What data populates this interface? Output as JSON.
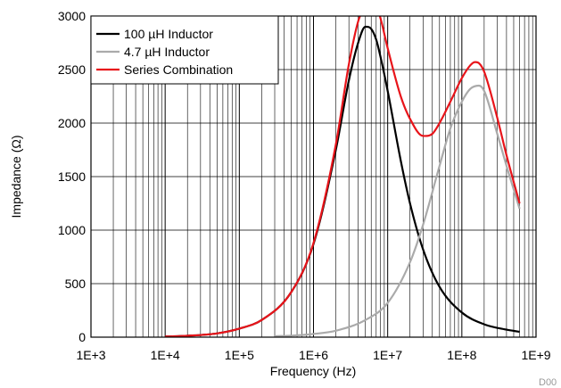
{
  "chart_data": {
    "type": "line",
    "title": "",
    "xlabel": "Frequency (Hz)",
    "ylabel": "Impedance (Ω)",
    "x_scale": "log",
    "xlim": [
      1000,
      1000000000
    ],
    "ylim": [
      0,
      3000
    ],
    "x_tick_labels": [
      "1E+3",
      "1E+4",
      "1E+5",
      "1E+6",
      "1E+7",
      "1E+8",
      "1E+9"
    ],
    "y_tick_labels": [
      "0",
      "500",
      "1000",
      "1500",
      "2000",
      "2500",
      "3000"
    ],
    "grid": true,
    "legend_position": "top-left",
    "series": [
      {
        "name": "100 µH Inductor",
        "color": "#000000",
        "x": [
          10000,
          20000,
          50000,
          100000,
          200000,
          500000,
          1000000,
          2000000,
          3000000,
          4000000,
          5000000,
          6000000,
          7000000,
          8000000,
          10000000,
          15000000,
          20000000,
          30000000,
          50000000,
          100000000,
          200000000,
          400000000,
          600000000
        ],
        "y": [
          6,
          13,
          35,
          80,
          160,
          420,
          870,
          1750,
          2400,
          2750,
          2900,
          2880,
          2780,
          2620,
          2300,
          1650,
          1250,
          820,
          470,
          230,
          120,
          70,
          50
        ]
      },
      {
        "name": "4.7 µH Inductor",
        "color": "#aaaaaa",
        "x": [
          300000,
          500000,
          1000000,
          2000000,
          5000000,
          10000000,
          20000000,
          30000000,
          50000000,
          70000000,
          100000000,
          130000000,
          170000000,
          200000000,
          300000000,
          400000000,
          600000000
        ],
        "y": [
          10,
          14,
          30,
          60,
          160,
          320,
          700,
          1050,
          1600,
          1950,
          2200,
          2320,
          2350,
          2300,
          1900,
          1600,
          1200
        ]
      },
      {
        "name": "Series Combination",
        "color": "#e8141a",
        "x": [
          10000,
          20000,
          50000,
          100000,
          200000,
          500000,
          1000000,
          2000000,
          3000000,
          4000000,
          5000000,
          6000000,
          7000000,
          8000000,
          10000000,
          15000000,
          20000000,
          30000000,
          40000000,
          50000000,
          70000000,
          100000000,
          130000000,
          150000000,
          170000000,
          200000000,
          300000000,
          400000000,
          600000000
        ],
        "y": [
          6,
          13,
          35,
          80,
          160,
          420,
          880,
          1800,
          2550,
          2950,
          3100,
          3150,
          3100,
          2980,
          2700,
          2250,
          2040,
          1880,
          1900,
          2000,
          2200,
          2420,
          2540,
          2570,
          2560,
          2480,
          2050,
          1700,
          1250
        ]
      }
    ],
    "annotation": "D00"
  }
}
